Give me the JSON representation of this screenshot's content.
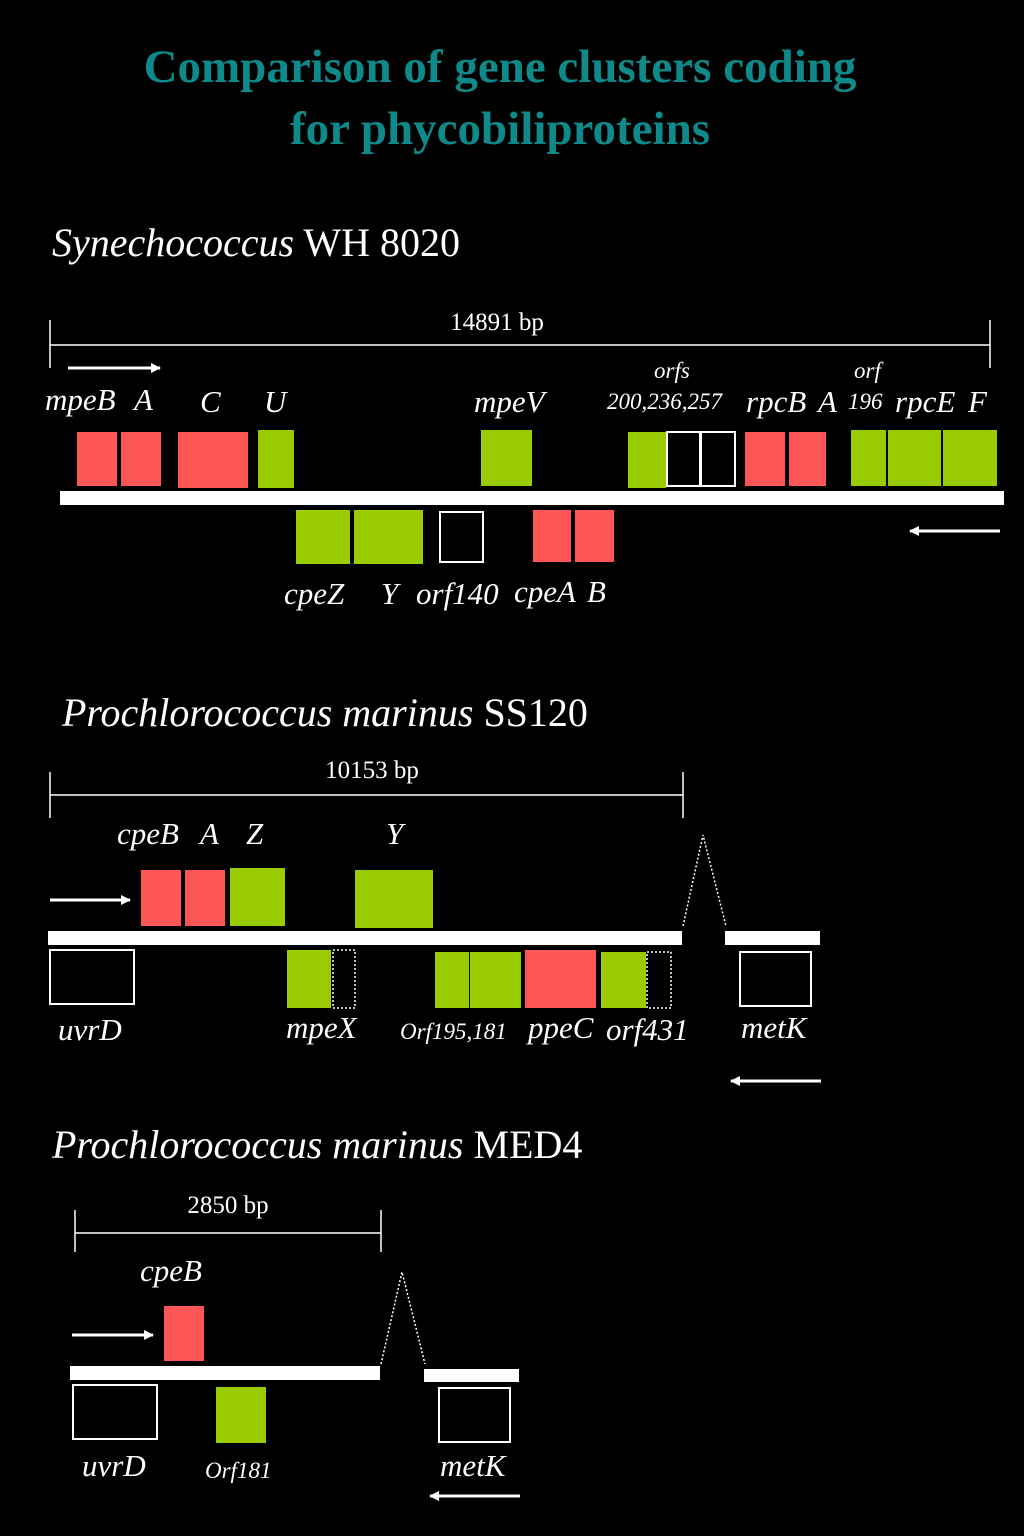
{
  "title": {
    "line1": "Comparison of gene clusters coding",
    "line2": "for phycobiliproteins"
  },
  "colors": {
    "pe_gene": "#ff5555",
    "linker_gene": "#99cc00",
    "unknown_orf": "#000000",
    "title": "#0f8a8a"
  },
  "panels": [
    {
      "organism_italic": "Synechococcus",
      "strain": "WH 8020",
      "scale": "14891 bp",
      "labels_top": {
        "mpeB": "mpeB",
        "A": "A",
        "C": "C",
        "U": "U",
        "mpeV": "mpeV",
        "orfs": "orfs",
        "orfs_nums": "200,236,257",
        "rpcB": "rpcB",
        "rpcA": "A",
        "orf": "orf",
        "orf_num": "196",
        "rpcE": "rpcE",
        "F": "F"
      },
      "labels_bottom": {
        "cpeZ": "cpeZ",
        "Y": "Y",
        "orf140": "orf140",
        "cpeA": "cpeA",
        "B": "B"
      }
    },
    {
      "organism_italic": "Prochlorococcus marinus",
      "strain": "SS120",
      "scale": "10153 bp",
      "labels_top": {
        "cpeB": "cpeB",
        "A": "A",
        "Z": "Z",
        "Y": "Y"
      },
      "labels_bottom": {
        "uvrD": "uvrD",
        "mpeX": "mpeX",
        "Orf195": "Orf195,181",
        "ppeC": "ppeC",
        "orf431": "orf431",
        "metK": "metK"
      }
    },
    {
      "organism_italic": "Prochlorococcus marinus",
      "strain": "MED4",
      "scale": "2850 bp",
      "labels_top": {
        "cpeB": "cpeB"
      },
      "labels_bottom": {
        "uvrD": "uvrD",
        "Orf181": "Orf181",
        "metK": "metK"
      }
    }
  ]
}
